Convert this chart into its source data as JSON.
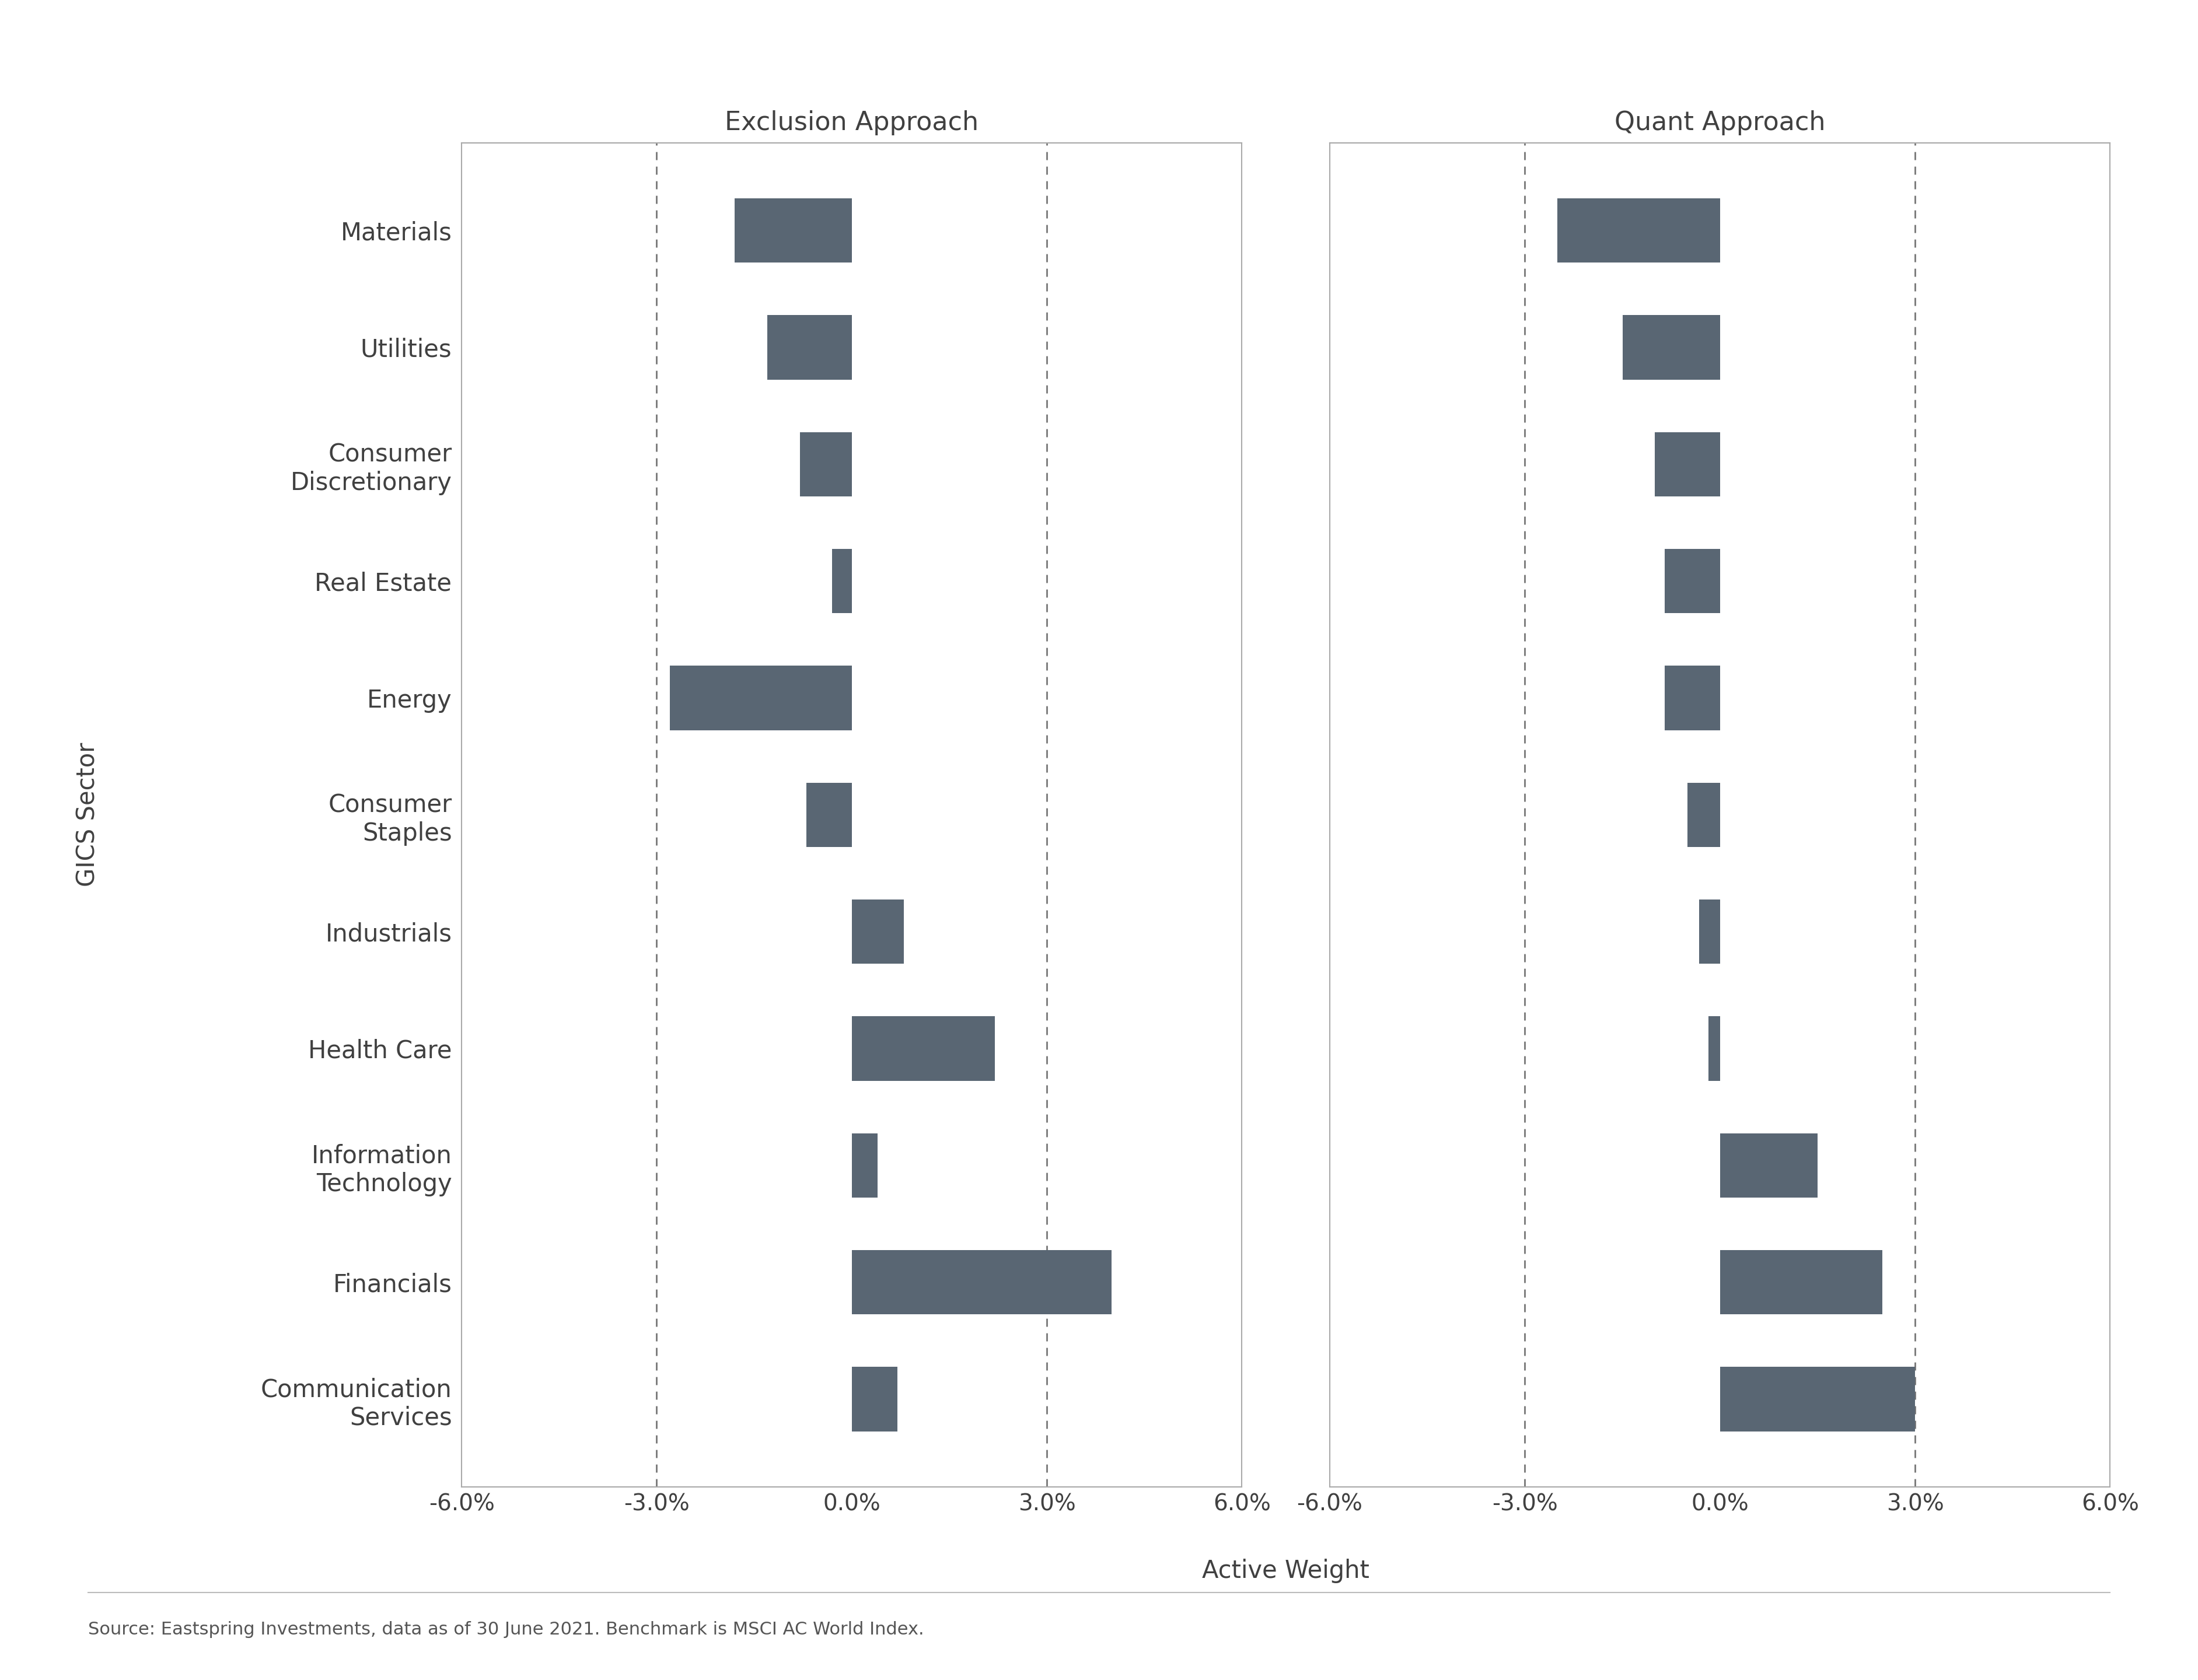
{
  "categories": [
    "Materials",
    "Utilities",
    "Consumer\nDiscretionary",
    "Real Estate",
    "Energy",
    "Consumer\nStaples",
    "Industrials",
    "Health Care",
    "Information\nTechnology",
    "Financials",
    "Communication\nServices"
  ],
  "exclusion_values": [
    -1.8,
    -1.3,
    -0.8,
    -0.3,
    -2.8,
    -0.7,
    0.8,
    2.2,
    0.4,
    4.0,
    0.7
  ],
  "quant_values": [
    -2.5,
    -1.5,
    -1.0,
    -0.85,
    -0.85,
    -0.5,
    -0.32,
    -0.18,
    1.5,
    2.5,
    3.0
  ],
  "bar_color": "#596673",
  "title_exclusion": "Exclusion Approach",
  "title_quant": "Quant Approach",
  "ylabel": "GICS Sector",
  "xlabel": "Active Weight",
  "xlim": [
    -6.0,
    6.0
  ],
  "xticks": [
    -6.0,
    -3.0,
    0.0,
    3.0,
    6.0
  ],
  "xticklabels": [
    "-6.0%",
    "-3.0%",
    "0.0%",
    "3.0%",
    "6.0%"
  ],
  "dashed_lines": [
    -3.0,
    3.0
  ],
  "source_text": "Source: Eastspring Investments, data as of 30 June 2021. Benchmark is MSCI AC World Index.",
  "background_color": "#ffffff",
  "title_fontsize": 32,
  "label_fontsize": 30,
  "tick_fontsize": 28,
  "ytick_fontsize": 30,
  "source_fontsize": 22,
  "bar_height": 0.55,
  "spine_color": "#aaaaaa",
  "dashed_color": "#777777",
  "text_color": "#404040"
}
